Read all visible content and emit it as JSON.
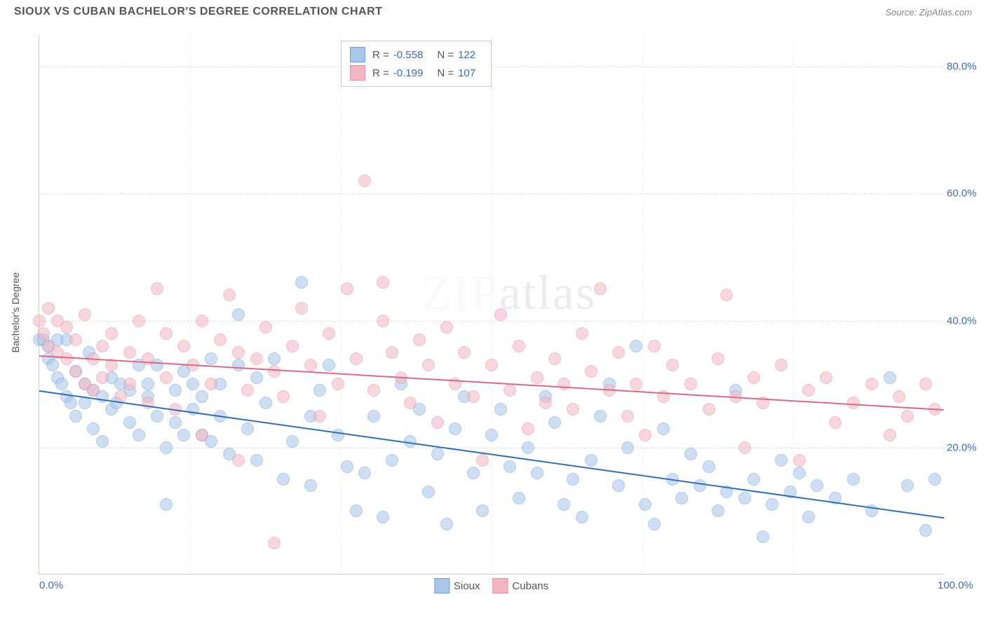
{
  "title": "SIOUX VS CUBAN BACHELOR'S DEGREE CORRELATION CHART",
  "source": "Source: ZipAtlas.com",
  "watermark": "ZIPatlas",
  "chart": {
    "type": "scatter",
    "ylabel": "Bachelor's Degree",
    "xlim": [
      0,
      100
    ],
    "ylim": [
      0,
      85
    ],
    "xticks": [
      {
        "v": 0,
        "l": "0.0%"
      },
      {
        "v": 100,
        "l": "100.0%"
      }
    ],
    "yticks": [
      {
        "v": 20,
        "l": "20.0%"
      },
      {
        "v": 40,
        "l": "40.0%"
      },
      {
        "v": 60,
        "l": "60.0%"
      },
      {
        "v": 80,
        "l": "80.0%"
      }
    ],
    "vgrid": [
      16.67,
      33.33,
      50,
      66.67,
      83.33
    ],
    "background_color": "#ffffff",
    "grid_color": "#dddddd",
    "marker_radius": 9,
    "marker_opacity": 0.55,
    "series": [
      {
        "name": "Sioux",
        "color_fill": "#a8c6ea",
        "color_stroke": "#6f9fd8",
        "trend_color": "#2f6fb8",
        "R": "-0.558",
        "N": "122",
        "trend": {
          "x1": 0,
          "y1": 29,
          "x2": 100,
          "y2": 9
        },
        "points": [
          [
            0,
            37
          ],
          [
            0.5,
            37
          ],
          [
            1,
            36
          ],
          [
            1,
            34
          ],
          [
            1.5,
            33
          ],
          [
            2,
            37
          ],
          [
            2,
            31
          ],
          [
            2.5,
            30
          ],
          [
            3,
            37
          ],
          [
            3,
            28
          ],
          [
            3.5,
            27
          ],
          [
            4,
            32
          ],
          [
            4,
            25
          ],
          [
            5,
            30
          ],
          [
            5,
            27
          ],
          [
            5.5,
            35
          ],
          [
            6,
            23
          ],
          [
            6,
            29
          ],
          [
            7,
            21
          ],
          [
            7,
            28
          ],
          [
            8,
            26
          ],
          [
            8,
            31
          ],
          [
            8.5,
            27
          ],
          [
            9,
            30
          ],
          [
            10,
            24
          ],
          [
            10,
            29
          ],
          [
            11,
            33
          ],
          [
            11,
            22
          ],
          [
            12,
            28
          ],
          [
            12,
            30
          ],
          [
            13,
            25
          ],
          [
            13,
            33
          ],
          [
            14,
            20
          ],
          [
            14,
            11
          ],
          [
            15,
            29
          ],
          [
            15,
            24
          ],
          [
            16,
            22
          ],
          [
            16,
            32
          ],
          [
            17,
            26
          ],
          [
            17,
            30
          ],
          [
            18,
            22
          ],
          [
            18,
            28
          ],
          [
            19,
            34
          ],
          [
            19,
            21
          ],
          [
            20,
            25
          ],
          [
            20,
            30
          ],
          [
            21,
            19
          ],
          [
            22,
            33
          ],
          [
            22,
            41
          ],
          [
            23,
            23
          ],
          [
            24,
            18
          ],
          [
            24,
            31
          ],
          [
            25,
            27
          ],
          [
            26,
            34
          ],
          [
            27,
            15
          ],
          [
            28,
            21
          ],
          [
            29,
            46
          ],
          [
            30,
            25
          ],
          [
            30,
            14
          ],
          [
            31,
            29
          ],
          [
            32,
            33
          ],
          [
            33,
            22
          ],
          [
            34,
            17
          ],
          [
            35,
            10
          ],
          [
            36,
            16
          ],
          [
            37,
            25
          ],
          [
            38,
            9
          ],
          [
            39,
            18
          ],
          [
            40,
            30
          ],
          [
            41,
            21
          ],
          [
            42,
            26
          ],
          [
            43,
            13
          ],
          [
            44,
            19
          ],
          [
            45,
            8
          ],
          [
            46,
            23
          ],
          [
            47,
            28
          ],
          [
            48,
            16
          ],
          [
            49,
            10
          ],
          [
            50,
            22
          ],
          [
            51,
            26
          ],
          [
            52,
            17
          ],
          [
            53,
            12
          ],
          [
            54,
            20
          ],
          [
            55,
            16
          ],
          [
            56,
            28
          ],
          [
            57,
            24
          ],
          [
            58,
            11
          ],
          [
            59,
            15
          ],
          [
            60,
            9
          ],
          [
            61,
            18
          ],
          [
            62,
            25
          ],
          [
            63,
            30
          ],
          [
            64,
            14
          ],
          [
            65,
            20
          ],
          [
            66,
            36
          ],
          [
            67,
            11
          ],
          [
            68,
            8
          ],
          [
            69,
            23
          ],
          [
            70,
            15
          ],
          [
            71,
            12
          ],
          [
            72,
            19
          ],
          [
            73,
            14
          ],
          [
            74,
            17
          ],
          [
            75,
            10
          ],
          [
            76,
            13
          ],
          [
            77,
            29
          ],
          [
            78,
            12
          ],
          [
            79,
            15
          ],
          [
            80,
            6
          ],
          [
            81,
            11
          ],
          [
            82,
            18
          ],
          [
            83,
            13
          ],
          [
            84,
            16
          ],
          [
            85,
            9
          ],
          [
            86,
            14
          ],
          [
            88,
            12
          ],
          [
            90,
            15
          ],
          [
            92,
            10
          ],
          [
            94,
            31
          ],
          [
            96,
            14
          ],
          [
            98,
            7
          ],
          [
            99,
            15
          ]
        ]
      },
      {
        "name": "Cubans",
        "color_fill": "#f4b6c2",
        "color_stroke": "#e98ca0",
        "trend_color": "#d86b84",
        "R": "-0.199",
        "N": "107",
        "trend": {
          "x1": 0,
          "y1": 34.5,
          "x2": 100,
          "y2": 26
        },
        "points": [
          [
            0,
            40
          ],
          [
            0.5,
            38
          ],
          [
            1,
            42
          ],
          [
            1,
            36
          ],
          [
            2,
            40
          ],
          [
            2,
            35
          ],
          [
            3,
            34
          ],
          [
            3,
            39
          ],
          [
            4,
            32
          ],
          [
            4,
            37
          ],
          [
            5,
            30
          ],
          [
            5,
            41
          ],
          [
            6,
            34
          ],
          [
            6,
            29
          ],
          [
            7,
            36
          ],
          [
            7,
            31
          ],
          [
            8,
            33
          ],
          [
            8,
            38
          ],
          [
            9,
            28
          ],
          [
            10,
            35
          ],
          [
            10,
            30
          ],
          [
            11,
            40
          ],
          [
            12,
            34
          ],
          [
            12,
            27
          ],
          [
            13,
            45
          ],
          [
            14,
            38
          ],
          [
            14,
            31
          ],
          [
            15,
            26
          ],
          [
            16,
            36
          ],
          [
            17,
            33
          ],
          [
            18,
            40
          ],
          [
            18,
            22
          ],
          [
            19,
            30
          ],
          [
            20,
            37
          ],
          [
            21,
            44
          ],
          [
            22,
            35
          ],
          [
            22,
            18
          ],
          [
            23,
            29
          ],
          [
            24,
            34
          ],
          [
            25,
            39
          ],
          [
            26,
            32
          ],
          [
            26,
            5
          ],
          [
            27,
            28
          ],
          [
            28,
            36
          ],
          [
            29,
            42
          ],
          [
            30,
            33
          ],
          [
            31,
            25
          ],
          [
            32,
            38
          ],
          [
            33,
            30
          ],
          [
            34,
            45
          ],
          [
            35,
            34
          ],
          [
            36,
            62
          ],
          [
            37,
            29
          ],
          [
            38,
            40
          ],
          [
            38,
            46
          ],
          [
            39,
            35
          ],
          [
            40,
            31
          ],
          [
            41,
            27
          ],
          [
            42,
            37
          ],
          [
            43,
            33
          ],
          [
            44,
            24
          ],
          [
            45,
            39
          ],
          [
            46,
            30
          ],
          [
            47,
            35
          ],
          [
            48,
            28
          ],
          [
            49,
            18
          ],
          [
            50,
            33
          ],
          [
            51,
            41
          ],
          [
            52,
            29
          ],
          [
            53,
            36
          ],
          [
            54,
            23
          ],
          [
            55,
            31
          ],
          [
            56,
            27
          ],
          [
            57,
            34
          ],
          [
            58,
            30
          ],
          [
            59,
            26
          ],
          [
            60,
            38
          ],
          [
            61,
            32
          ],
          [
            62,
            45
          ],
          [
            63,
            29
          ],
          [
            64,
            35
          ],
          [
            65,
            25
          ],
          [
            66,
            30
          ],
          [
            67,
            22
          ],
          [
            68,
            36
          ],
          [
            69,
            28
          ],
          [
            70,
            33
          ],
          [
            72,
            30
          ],
          [
            74,
            26
          ],
          [
            75,
            34
          ],
          [
            76,
            44
          ],
          [
            77,
            28
          ],
          [
            78,
            20
          ],
          [
            79,
            31
          ],
          [
            80,
            27
          ],
          [
            82,
            33
          ],
          [
            84,
            18
          ],
          [
            85,
            29
          ],
          [
            87,
            31
          ],
          [
            88,
            24
          ],
          [
            90,
            27
          ],
          [
            92,
            30
          ],
          [
            94,
            22
          ],
          [
            95,
            28
          ],
          [
            96,
            25
          ],
          [
            98,
            30
          ],
          [
            99,
            26
          ]
        ]
      }
    ]
  },
  "legend": {
    "items": [
      {
        "label": "Sioux",
        "fill": "#a8c6ea",
        "stroke": "#6f9fd8"
      },
      {
        "label": "Cubans",
        "fill": "#f4b6c2",
        "stroke": "#e98ca0"
      }
    ]
  }
}
